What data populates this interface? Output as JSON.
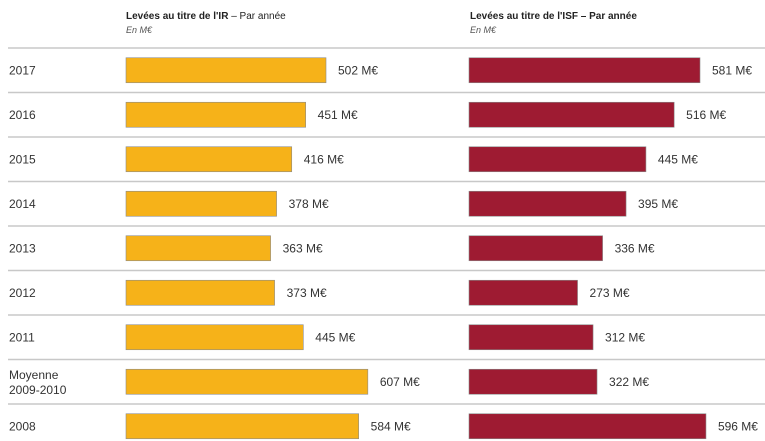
{
  "headers": {
    "ir": {
      "title_bold": "Levées au titre de l'IR",
      "title_rest": " – Par année",
      "unit": "En M€"
    },
    "isf": {
      "title_bold": "Levées au titre de l'ISF – Par année",
      "title_rest": "",
      "unit": "En M€"
    }
  },
  "colors": {
    "ir": "#f6b219",
    "isf": "#9e1b32",
    "divider": "#c8c8c8"
  },
  "chart_data": {
    "type": "bar",
    "orientation": "horizontal",
    "categories": [
      "2017",
      "2016",
      "2015",
      "2014",
      "2013",
      "2012",
      "2011",
      "Moyenne 2009-2010",
      "2008"
    ],
    "category_lines": [
      [
        "2017"
      ],
      [
        "2016"
      ],
      [
        "2015"
      ],
      [
        "2014"
      ],
      [
        "2013"
      ],
      [
        "2012"
      ],
      [
        "2011"
      ],
      [
        "Moyenne",
        "2009-2010"
      ],
      [
        "2008"
      ]
    ],
    "series": [
      {
        "name": "Levées au titre de l'IR – Par année",
        "unit": "M€",
        "values": [
          502,
          451,
          416,
          378,
          363,
          373,
          445,
          607,
          584
        ],
        "labels": [
          "502 M€",
          "451 M€",
          "416 M€",
          "378 M€",
          "363 M€",
          "373 M€",
          "445 M€",
          "607 M€",
          "584 M€"
        ]
      },
      {
        "name": "Levées au titre de l'ISF – Par année",
        "unit": "M€",
        "values": [
          581,
          516,
          445,
          395,
          336,
          273,
          312,
          322,
          596
        ],
        "labels": [
          "581 M€",
          "516 M€",
          "445 M€",
          "395 M€",
          "336 M€",
          "273 M€",
          "312 M€",
          "322 M€",
          "596 M€"
        ]
      }
    ],
    "grid": false,
    "legend": "none"
  }
}
